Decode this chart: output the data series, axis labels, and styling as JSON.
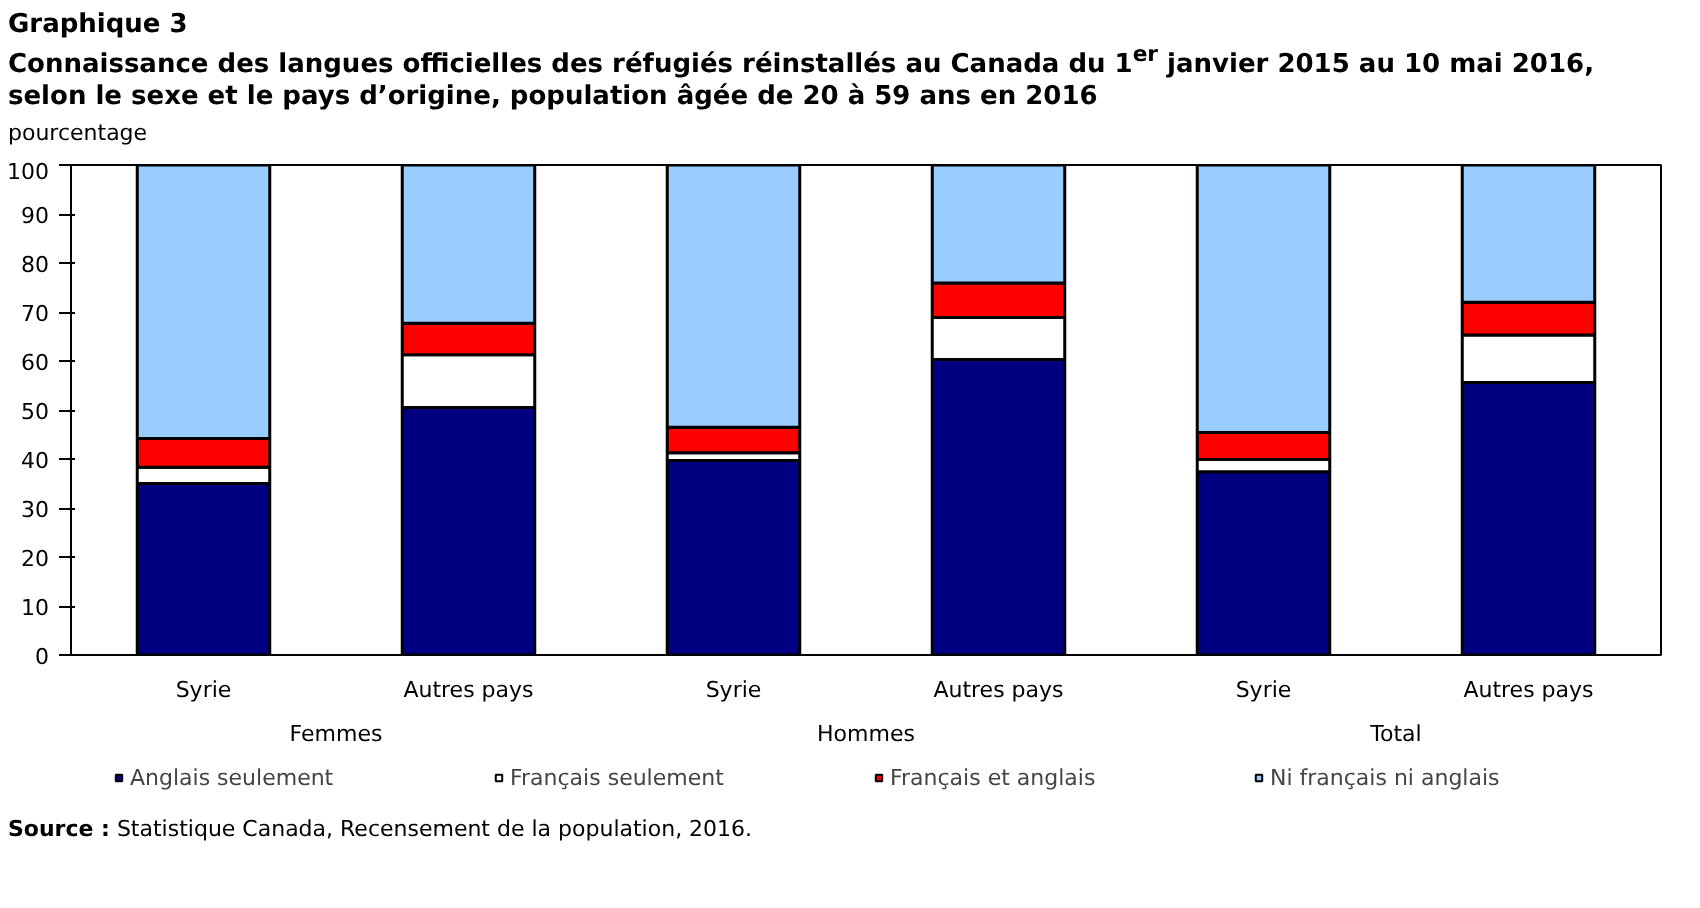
{
  "chart_data": {
    "type": "bar",
    "stacked": true,
    "title": "Graphique  3",
    "subtitle": "Connaissance des langues officielles des réfugiés réinstallés au Canada du 1$^{er}$ janvier 2015 au 10 mai 2016, selon le sexe et le pays d’origine, population âgée de 20 à 59 ans en 2016",
    "ylabel": "pourcentage",
    "categories": [
      "Syrie",
      "Autres pays",
      "Syrie",
      "Autres pays",
      "Syrie",
      "Autres pays"
    ],
    "series": [
      {
        "name": "Anglais seulement",
        "color": "#000080",
        "values": [
          35.0,
          50.5,
          39.7,
          60.3,
          37.4,
          55.6
        ]
      },
      {
        "name": "Français seulement",
        "color": "#ffffff",
        "values": [
          3.3,
          10.8,
          1.6,
          8.6,
          2.5,
          9.7
        ]
      },
      {
        "name": "Français et anglais",
        "color": "#ff0000",
        "values": [
          5.9,
          6.4,
          5.2,
          7.0,
          5.5,
          6.7
        ]
      },
      {
        "name": "Ni français ni anglais",
        "color": "#99ccff",
        "values": [
          55.8,
          32.3,
          53.5,
          24.1,
          54.6,
          28.0
        ]
      }
    ],
    "ylim": [
      0,
      100
    ],
    "yticks": [
      0,
      10,
      20,
      30,
      40,
      50,
      60,
      70,
      80,
      90,
      100
    ],
    "grid": false,
    "legend": "bottom",
    "annotations": [
      "Femmes",
      "Hommes",
      "Total",
      "Source : Statistique Canada, Recensement de la population, 2016."
    ]
  }
}
